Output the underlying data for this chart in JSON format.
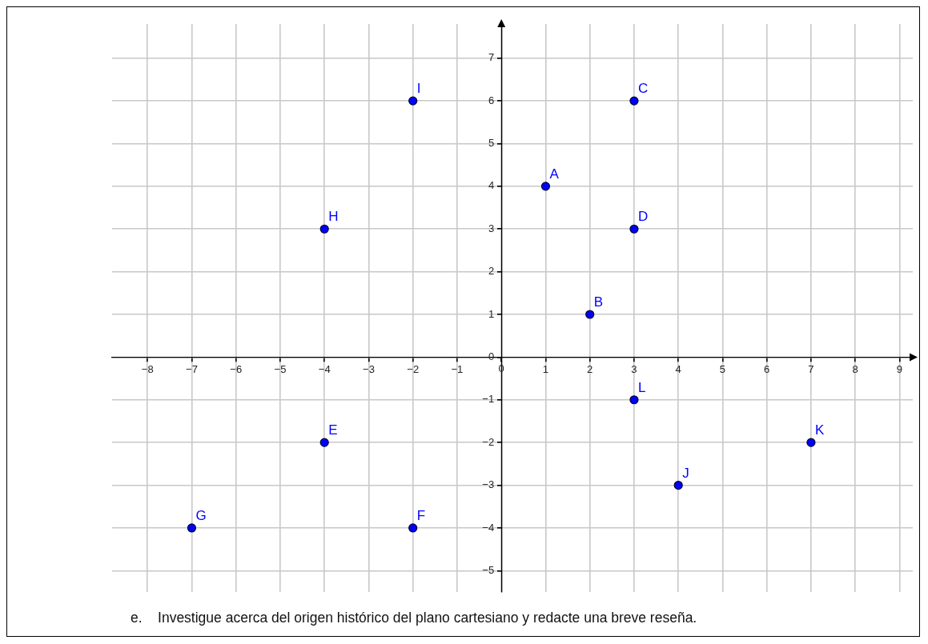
{
  "chart_data": {
    "type": "scatter",
    "x": [
      1,
      2,
      3,
      3,
      -4,
      -2,
      -7,
      -4,
      -2,
      4,
      7,
      3
    ],
    "series": [
      {
        "color": "#0000ff",
        "values": [
          4,
          1,
          6,
          3,
          -2,
          -4,
          -4,
          3,
          6,
          -3,
          -2,
          -1
        ]
      }
    ],
    "xlim": [
      -8.8,
      9.3
    ],
    "ylim": [
      -5.5,
      7.8
    ],
    "xticks": [
      -8,
      -7,
      -6,
      -5,
      -4,
      -3,
      -2,
      -1,
      0,
      1,
      2,
      3,
      4,
      5,
      6,
      7,
      8,
      9
    ],
    "yticks": [
      -5,
      -4,
      -3,
      -2,
      -1,
      0,
      1,
      2,
      3,
      4,
      5,
      6,
      7
    ],
    "grid": true,
    "legend": false,
    "marker": "circle",
    "annotations": [
      {
        "text": "A",
        "x": 1,
        "y": 4
      },
      {
        "text": "B",
        "x": 2,
        "y": 1
      },
      {
        "text": "C",
        "x": 3,
        "y": 6
      },
      {
        "text": "D",
        "x": 3,
        "y": 3
      },
      {
        "text": "E",
        "x": -4,
        "y": -2
      },
      {
        "text": "F",
        "x": -2,
        "y": -4
      },
      {
        "text": "G",
        "x": -7,
        "y": -4
      },
      {
        "text": "H",
        "x": -4,
        "y": 3
      },
      {
        "text": "I",
        "x": -2,
        "y": 6
      },
      {
        "text": "J",
        "x": 4,
        "y": -3
      },
      {
        "text": "K",
        "x": 7,
        "y": -2
      },
      {
        "text": "L",
        "x": 3,
        "y": -1
      },
      "e.    Investigue acerca del origen histórico del plano cartesiano y redacte una breve reseña."
    ]
  }
}
